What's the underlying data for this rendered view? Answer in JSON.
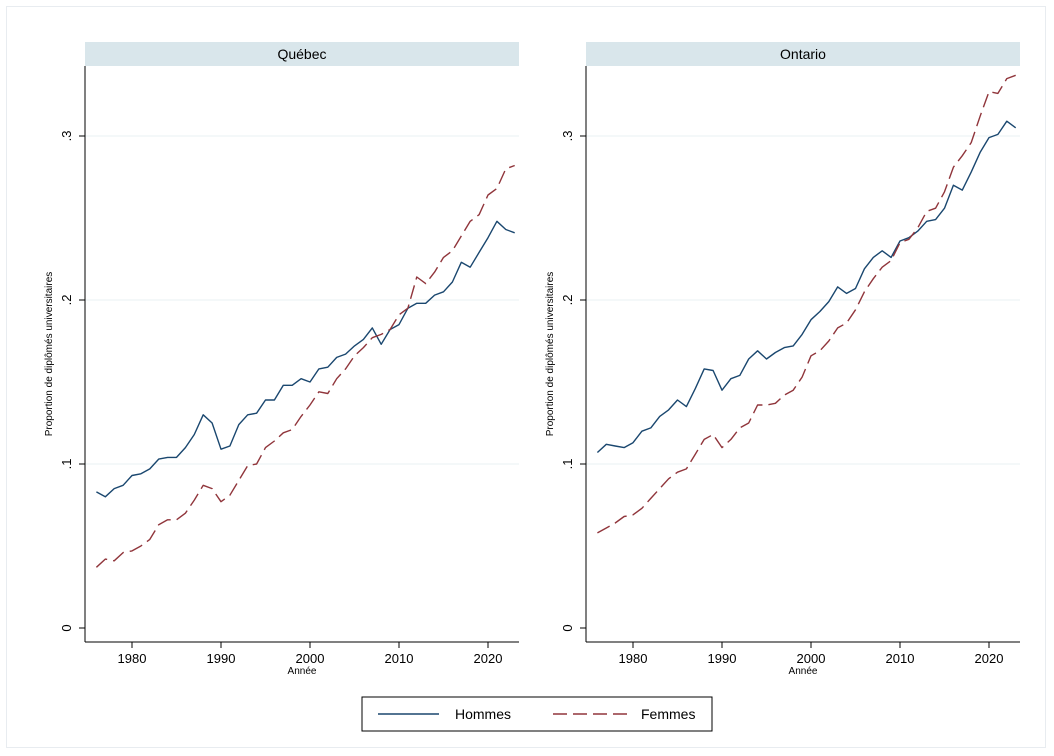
{
  "colors": {
    "hommes": "#1a476f",
    "femmes": "#90353b",
    "panel_header": "#d9e6eb",
    "grid": "#eaf2f3"
  },
  "legend": {
    "hommes_label": "Hommes",
    "femmes_label": "Femmes"
  },
  "chart_data": [
    {
      "type": "line",
      "title": "Québec",
      "xlabel": "Année",
      "ylabel": "Proportion de diplômés universitaires",
      "xlim": [
        1975,
        2024
      ],
      "ylim": [
        0,
        0.34
      ],
      "x_ticks": [
        1980,
        1990,
        2000,
        2010,
        2020
      ],
      "y_ticks": [
        0,
        0.1,
        0.2,
        0.3
      ],
      "y_tick_labels": [
        "0",
        ".1",
        ".2",
        ".3"
      ],
      "x": [
        1976,
        1977,
        1978,
        1979,
        1980,
        1981,
        1982,
        1983,
        1984,
        1985,
        1986,
        1987,
        1988,
        1989,
        1990,
        1991,
        1992,
        1993,
        1994,
        1995,
        1996,
        1997,
        1998,
        1999,
        2000,
        2001,
        2002,
        2003,
        2004,
        2005,
        2006,
        2007,
        2008,
        2009,
        2010,
        2011,
        2012,
        2013,
        2014,
        2015,
        2016,
        2017,
        2018,
        2019,
        2020,
        2021,
        2022,
        2023
      ],
      "series": [
        {
          "name": "Hommes",
          "values": [
            0.083,
            0.08,
            0.085,
            0.087,
            0.093,
            0.094,
            0.097,
            0.103,
            0.104,
            0.104,
            0.11,
            0.118,
            0.13,
            0.125,
            0.109,
            0.111,
            0.124,
            0.13,
            0.131,
            0.139,
            0.139,
            0.148,
            0.148,
            0.152,
            0.15,
            0.158,
            0.159,
            0.165,
            0.167,
            0.172,
            0.176,
            0.183,
            0.173,
            0.182,
            0.185,
            0.195,
            0.198,
            0.198,
            0.203,
            0.205,
            0.211,
            0.223,
            0.22,
            0.229,
            0.238,
            0.248,
            0.243,
            0.241
          ]
        },
        {
          "name": "Femmes",
          "values": [
            0.037,
            0.042,
            0.041,
            0.046,
            0.047,
            0.05,
            0.054,
            0.063,
            0.066,
            0.066,
            0.07,
            0.078,
            0.087,
            0.085,
            0.077,
            0.081,
            0.09,
            0.099,
            0.1,
            0.11,
            0.114,
            0.119,
            0.121,
            0.129,
            0.136,
            0.144,
            0.143,
            0.152,
            0.158,
            0.166,
            0.171,
            0.177,
            0.179,
            0.182,
            0.191,
            0.195,
            0.214,
            0.21,
            0.217,
            0.226,
            0.23,
            0.239,
            0.248,
            0.252,
            0.264,
            0.268,
            0.28,
            0.282
          ]
        }
      ]
    },
    {
      "type": "line",
      "title": "Ontario",
      "xlabel": "Année",
      "ylabel": "Proportion de diplômés universitaires",
      "xlim": [
        1975,
        2024
      ],
      "ylim": [
        0,
        0.34
      ],
      "x_ticks": [
        1980,
        1990,
        2000,
        2010,
        2020
      ],
      "y_ticks": [
        0,
        0.1,
        0.2,
        0.3
      ],
      "y_tick_labels": [
        "0",
        ".1",
        ".2",
        ".3"
      ],
      "x": [
        1976,
        1977,
        1978,
        1979,
        1980,
        1981,
        1982,
        1983,
        1984,
        1985,
        1986,
        1987,
        1988,
        1989,
        1990,
        1991,
        1992,
        1993,
        1994,
        1995,
        1996,
        1997,
        1998,
        1999,
        2000,
        2001,
        2002,
        2003,
        2004,
        2005,
        2006,
        2007,
        2008,
        2009,
        2010,
        2011,
        2012,
        2013,
        2014,
        2015,
        2016,
        2017,
        2018,
        2019,
        2020,
        2021,
        2022,
        2023
      ],
      "series": [
        {
          "name": "Hommes",
          "values": [
            0.107,
            0.112,
            0.111,
            0.11,
            0.113,
            0.12,
            0.122,
            0.129,
            0.133,
            0.139,
            0.135,
            0.146,
            0.158,
            0.157,
            0.145,
            0.152,
            0.154,
            0.164,
            0.169,
            0.164,
            0.168,
            0.171,
            0.172,
            0.179,
            0.188,
            0.193,
            0.199,
            0.208,
            0.204,
            0.207,
            0.219,
            0.226,
            0.23,
            0.226,
            0.236,
            0.238,
            0.242,
            0.248,
            0.249,
            0.256,
            0.27,
            0.267,
            0.278,
            0.29,
            0.299,
            0.301,
            0.309,
            0.305
          ]
        },
        {
          "name": "Femmes",
          "values": [
            0.058,
            0.061,
            0.064,
            0.068,
            0.069,
            0.073,
            0.079,
            0.085,
            0.091,
            0.095,
            0.097,
            0.106,
            0.115,
            0.118,
            0.11,
            0.115,
            0.122,
            0.125,
            0.136,
            0.136,
            0.137,
            0.142,
            0.145,
            0.153,
            0.166,
            0.169,
            0.175,
            0.183,
            0.186,
            0.194,
            0.205,
            0.213,
            0.22,
            0.224,
            0.235,
            0.237,
            0.244,
            0.254,
            0.256,
            0.266,
            0.281,
            0.288,
            0.296,
            0.312,
            0.327,
            0.326,
            0.335,
            0.337
          ]
        }
      ]
    }
  ]
}
